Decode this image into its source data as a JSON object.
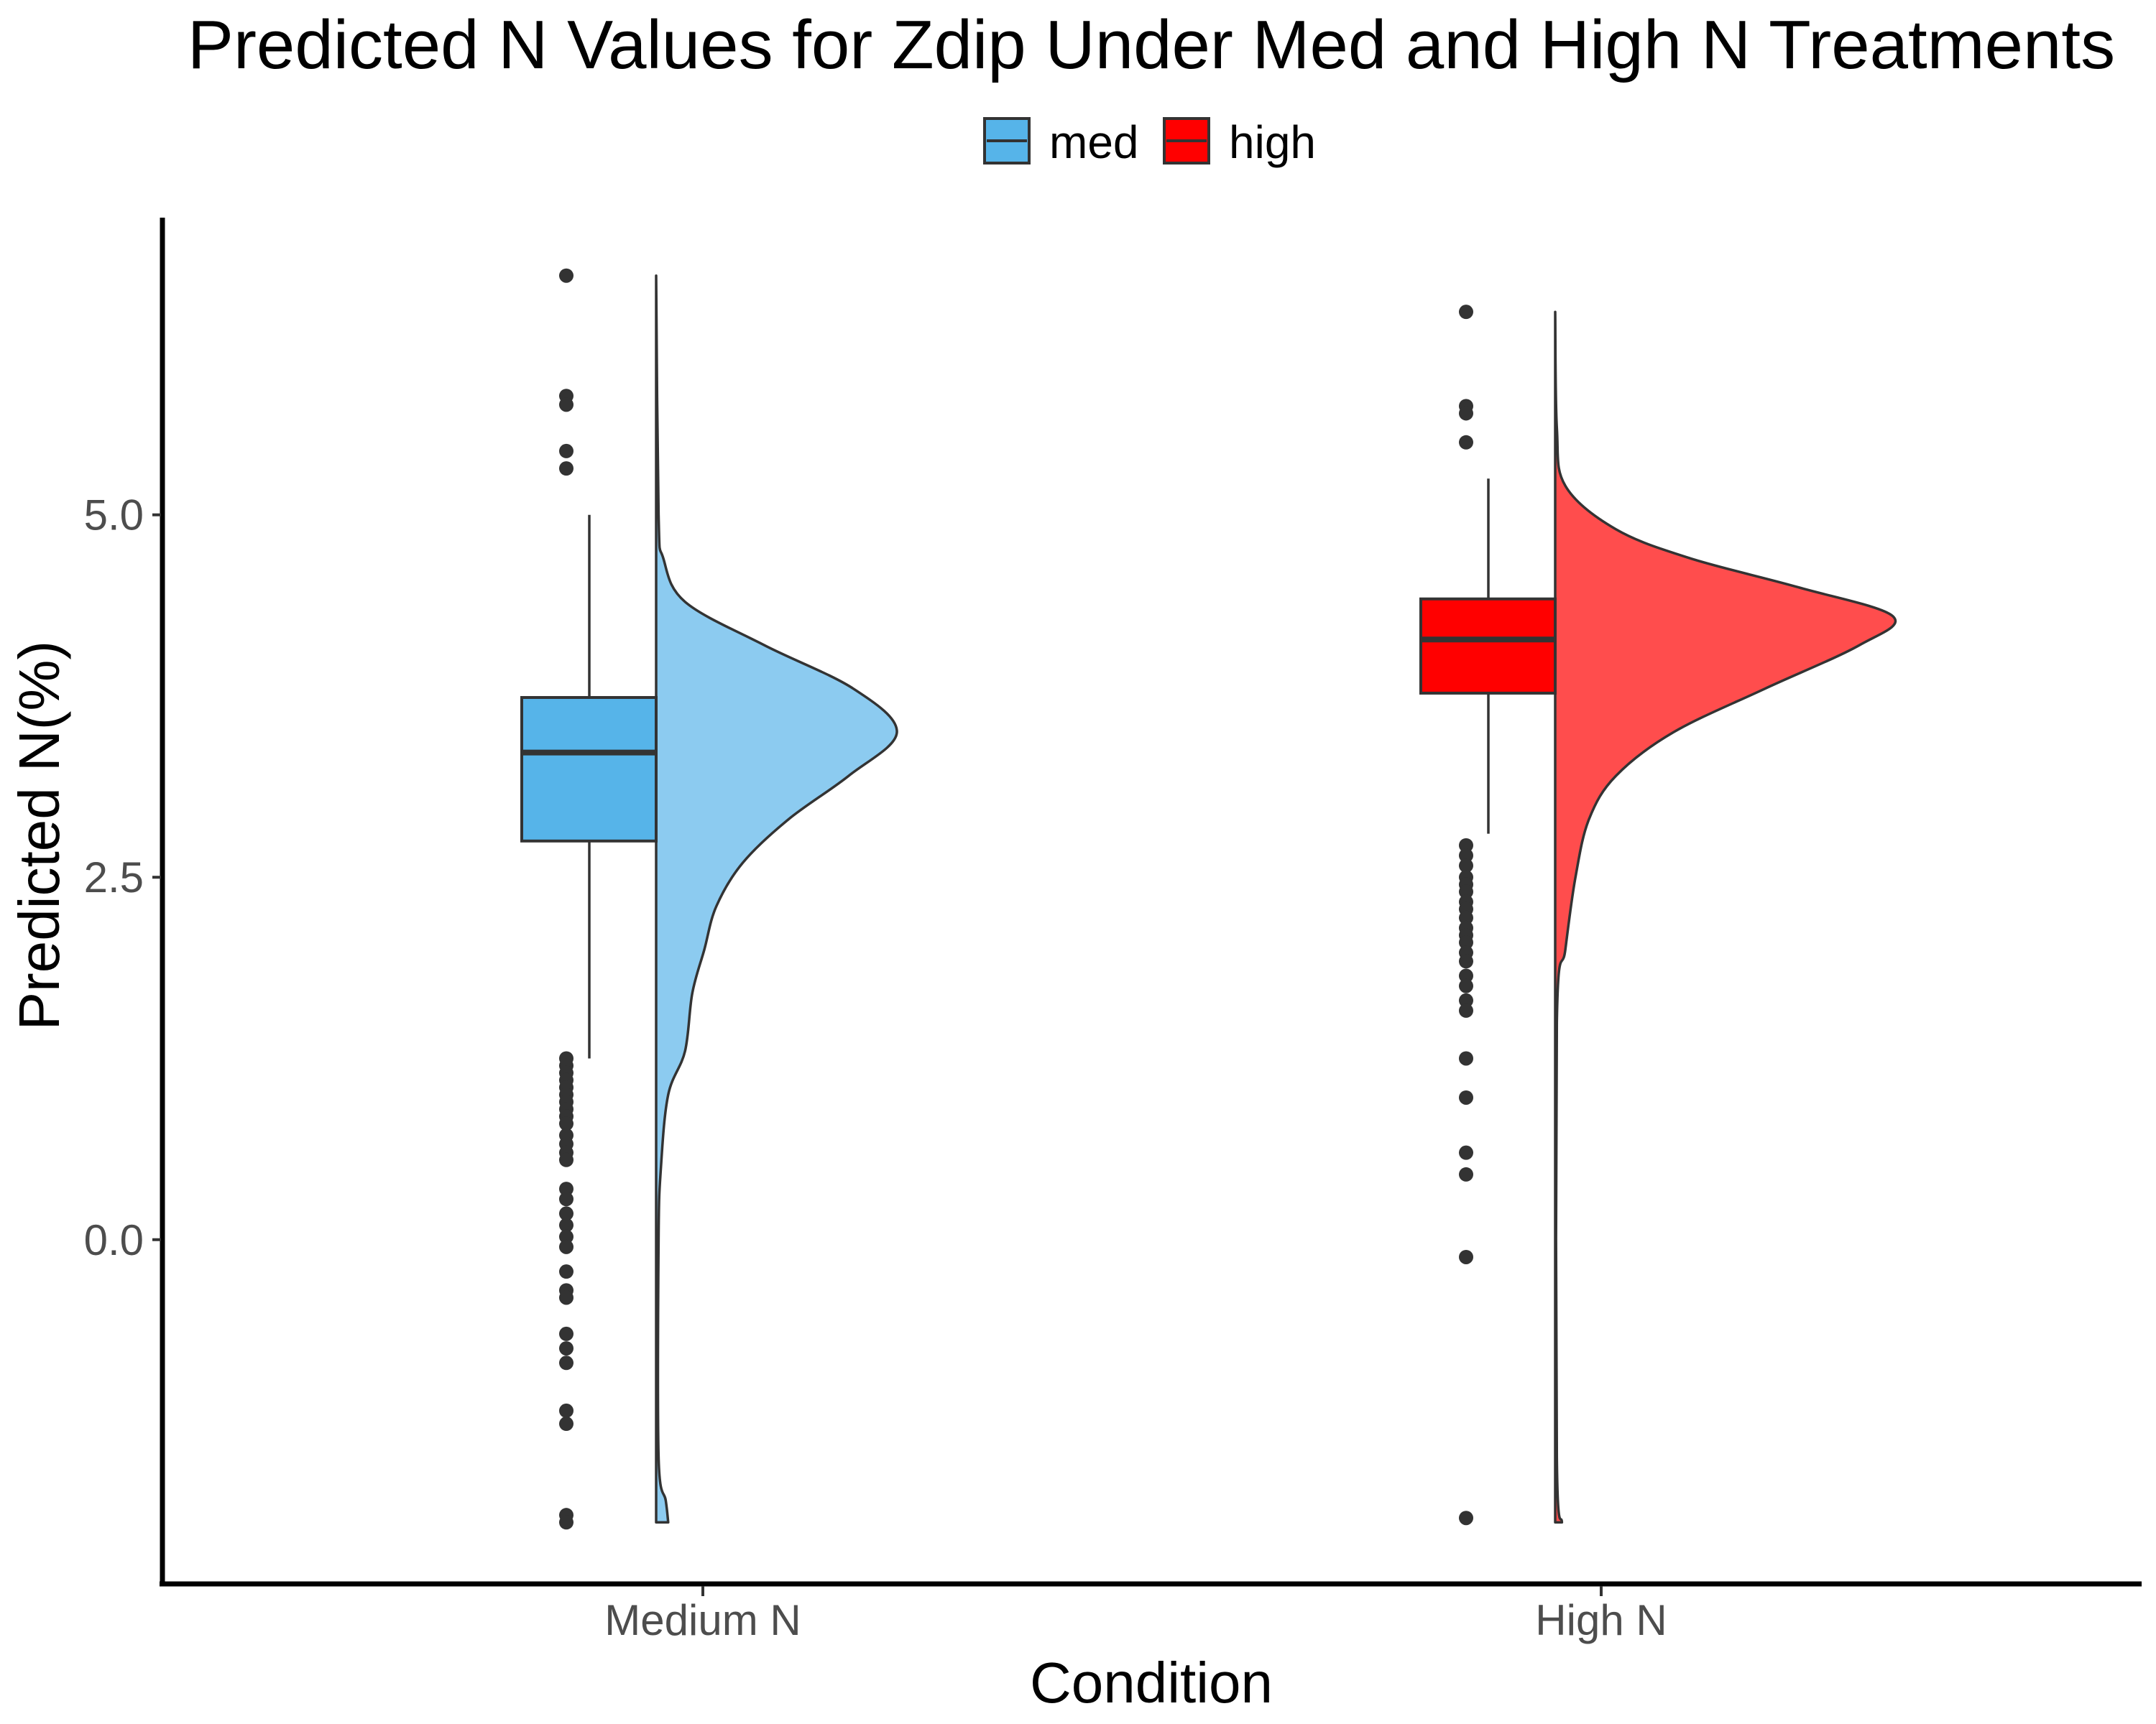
{
  "chart_data": {
    "type": "raincloud",
    "title": "Predicted N Values for Zdip Under Med and High N Treatments",
    "xlabel": "Condition",
    "ylabel": "Predicted N(%)",
    "ylim": [
      -2.35,
      7.05
    ],
    "yticks": [
      {
        "value": 0.0,
        "label": "0.0"
      },
      {
        "value": 2.5,
        "label": "2.5"
      },
      {
        "value": 5.0,
        "label": "5.0"
      }
    ],
    "categories": [
      "Medium N",
      "High N"
    ],
    "grid": false,
    "legend": {
      "position": "top",
      "entries": [
        {
          "label": "med",
          "color": "#56B4E9"
        },
        {
          "label": "high",
          "color": "#FF0000"
        }
      ]
    },
    "series": [
      {
        "name": "med",
        "category": "Medium N",
        "color": "#56B4E9",
        "violin_color": "#8ccbf0",
        "box": {
          "min": 1.25,
          "q1": 2.75,
          "median": 3.36,
          "q3": 3.74,
          "max": 5.0
        },
        "outliers": [
          6.65,
          5.82,
          5.76,
          5.44,
          5.32,
          1.25,
          1.2,
          1.15,
          1.1,
          1.05,
          1.0,
          0.95,
          0.9,
          0.85,
          0.8,
          0.72,
          0.66,
          0.6,
          0.55,
          0.35,
          0.28,
          0.18,
          0.1,
          0.02,
          -0.05,
          -0.22,
          -0.35,
          -0.4,
          -0.65,
          -0.75,
          -0.85,
          -1.18,
          -1.27,
          -1.9,
          -1.95
        ],
        "density": [
          {
            "y": -1.95,
            "w": 0.05
          },
          {
            "y": -1.8,
            "w": 0.04
          },
          {
            "y": -1.5,
            "w": 0.01
          },
          {
            "y": 0.0,
            "w": 0.01
          },
          {
            "y": 0.5,
            "w": 0.02
          },
          {
            "y": 1.0,
            "w": 0.05
          },
          {
            "y": 1.3,
            "w": 0.12
          },
          {
            "y": 1.7,
            "w": 0.15
          },
          {
            "y": 2.0,
            "w": 0.2
          },
          {
            "y": 2.3,
            "w": 0.25
          },
          {
            "y": 2.6,
            "w": 0.36
          },
          {
            "y": 2.9,
            "w": 0.55
          },
          {
            "y": 3.2,
            "w": 0.8
          },
          {
            "y": 3.5,
            "w": 1.0
          },
          {
            "y": 3.8,
            "w": 0.82
          },
          {
            "y": 4.1,
            "w": 0.45
          },
          {
            "y": 4.4,
            "w": 0.12
          },
          {
            "y": 4.7,
            "w": 0.03
          },
          {
            "y": 5.0,
            "w": 0.01
          },
          {
            "y": 6.65,
            "w": 0.0
          }
        ]
      },
      {
        "name": "high",
        "category": "High N",
        "color": "#FF0000",
        "violin_color": "#ff4d4d",
        "box": {
          "min": 2.8,
          "q1": 3.77,
          "median": 4.14,
          "q3": 4.42,
          "max": 5.25
        },
        "outliers": [
          6.4,
          5.75,
          5.7,
          5.5,
          2.72,
          2.65,
          2.58,
          2.5,
          2.45,
          2.4,
          2.33,
          2.28,
          2.22,
          2.15,
          2.1,
          2.05,
          1.98,
          1.92,
          1.82,
          1.75,
          1.65,
          1.58,
          1.25,
          0.98,
          0.6,
          0.45,
          -0.12,
          -1.92
        ],
        "density": [
          {
            "y": -1.95,
            "w": 0.02
          },
          {
            "y": -1.5,
            "w": 0.005
          },
          {
            "y": 1.5,
            "w": 0.005
          },
          {
            "y": 2.0,
            "w": 0.03
          },
          {
            "y": 2.5,
            "w": 0.06
          },
          {
            "y": 2.9,
            "w": 0.1
          },
          {
            "y": 3.2,
            "w": 0.18
          },
          {
            "y": 3.5,
            "w": 0.35
          },
          {
            "y": 3.8,
            "w": 0.62
          },
          {
            "y": 4.1,
            "w": 0.9
          },
          {
            "y": 4.3,
            "w": 1.0
          },
          {
            "y": 4.5,
            "w": 0.72
          },
          {
            "y": 4.7,
            "w": 0.4
          },
          {
            "y": 4.9,
            "w": 0.18
          },
          {
            "y": 5.2,
            "w": 0.03
          },
          {
            "y": 5.6,
            "w": 0.005
          },
          {
            "y": 6.4,
            "w": 0.0
          }
        ]
      }
    ]
  }
}
